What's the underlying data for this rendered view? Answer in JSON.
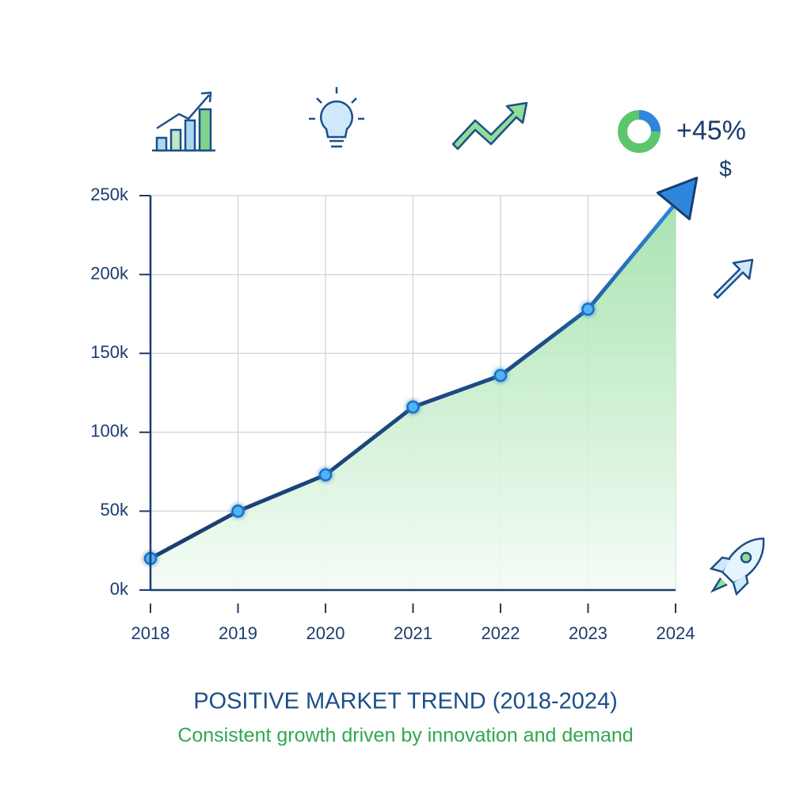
{
  "chart_data": {
    "type": "area",
    "title": "POSITIVE MARKET TREND (2018-2024)",
    "subtitle": "Consistent growth driven by innovation and demand",
    "annotations": [
      "+45%",
      "$"
    ],
    "categories": [
      "2018",
      "2019",
      "2020",
      "2021",
      "2022",
      "2023",
      "2024"
    ],
    "values": [
      20000,
      50000,
      73000,
      116000,
      136000,
      178000,
      245000
    ],
    "color": "#1a3d6e",
    "ylim": [
      0,
      250000
    ],
    "yticks": [
      {
        "value": 0,
        "label": "0k"
      },
      {
        "value": 50000,
        "label": "50k"
      },
      {
        "value": 100000,
        "label": "100k"
      },
      {
        "value": 150000,
        "label": "150k"
      },
      {
        "value": 200000,
        "label": "200k"
      },
      {
        "value": 250000,
        "label": "250k"
      }
    ],
    "grid": true
  }
}
